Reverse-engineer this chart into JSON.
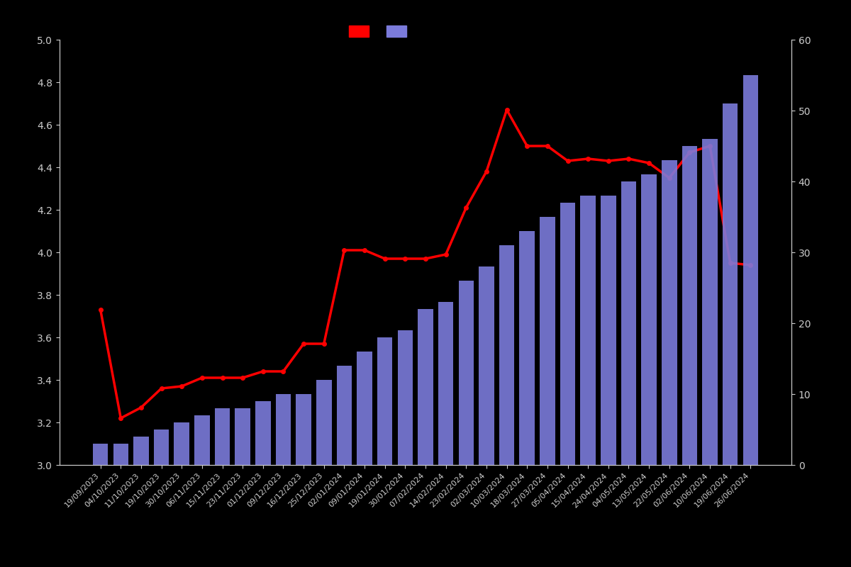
{
  "dates": [
    "19/09/2023",
    "04/10/2023",
    "11/10/2023",
    "19/10/2023",
    "30/10/2023",
    "06/11/2023",
    "15/11/2023",
    "23/11/2023",
    "01/12/2023",
    "09/12/2023",
    "16/12/2023",
    "25/12/2023",
    "02/01/2024",
    "09/01/2024",
    "19/01/2024",
    "30/01/2024",
    "07/02/2024",
    "14/02/2024",
    "23/02/2024",
    "02/03/2024",
    "10/03/2024",
    "18/03/2024",
    "27/03/2024",
    "05/04/2024",
    "15/04/2024",
    "24/04/2024",
    "04/05/2024",
    "13/05/2024",
    "22/05/2024",
    "02/06/2024",
    "10/06/2024",
    "19/06/2024",
    "26/06/2024"
  ],
  "bar_values": [
    3,
    3,
    4,
    5,
    6,
    7,
    8,
    8,
    9,
    10,
    10,
    12,
    14,
    16,
    18,
    19,
    22,
    23,
    26,
    28,
    31,
    33,
    35,
    37,
    38,
    38,
    40,
    41,
    43,
    45,
    46,
    51,
    55
  ],
  "line_values": [
    3.73,
    3.22,
    3.27,
    3.36,
    3.37,
    3.41,
    3.41,
    3.41,
    3.44,
    3.44,
    3.57,
    3.57,
    4.01,
    4.01,
    3.97,
    3.97,
    3.97,
    3.99,
    4.21,
    4.38,
    4.67,
    4.5,
    4.5,
    4.43,
    4.44,
    4.43,
    4.44,
    4.42,
    4.35,
    4.47,
    4.5,
    3.95,
    3.94
  ],
  "bar_color": "#7b7bdb",
  "line_color": "#ff0000",
  "marker_color": "#ff0000",
  "background_color": "#000000",
  "text_color": "#cccccc",
  "ylim_left": [
    3.0,
    5.0
  ],
  "ylim_right": [
    0,
    60
  ],
  "yticks_left": [
    3.0,
    3.2,
    3.4,
    3.6,
    3.8,
    4.0,
    4.2,
    4.4,
    4.6,
    4.8,
    5.0
  ],
  "yticks_right": [
    0,
    10,
    20,
    30,
    40,
    50,
    60
  ]
}
